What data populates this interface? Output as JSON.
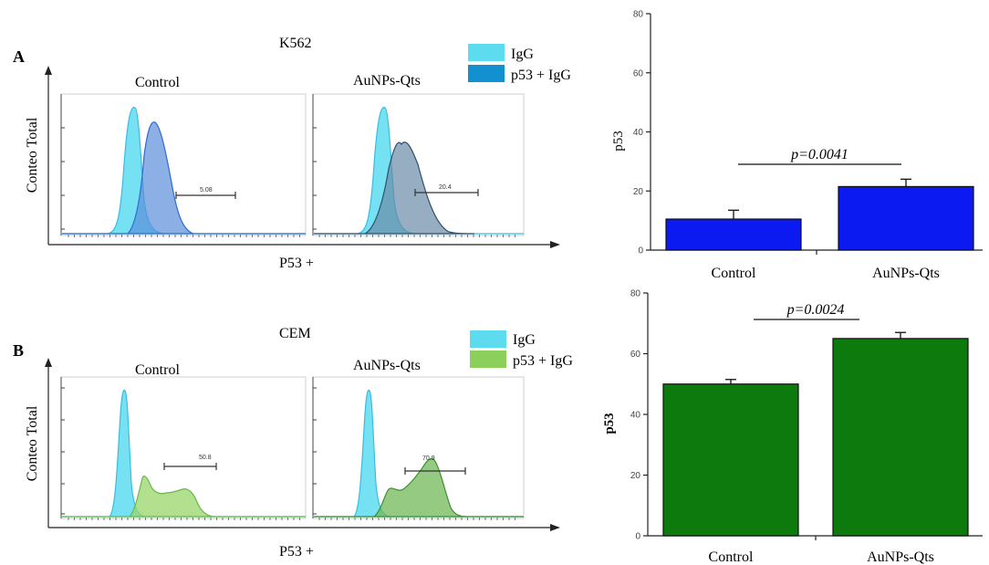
{
  "chart_data": [
    {
      "type": "area",
      "panel": "A",
      "cell_line": "K562",
      "ylabel": "Conteo Total",
      "xlabel": "P53 +",
      "legend": [
        {
          "label": "IgG",
          "color": "#5ddcf0"
        },
        {
          "label": "p53 + IgG",
          "color": "#1290d0"
        }
      ],
      "subplots": [
        {
          "title": "Control",
          "gate_value": "5.08",
          "overlay_color": "#5b8fdc"
        },
        {
          "title": "AuNPs-Qts",
          "gate_value": "20.4",
          "overlay_color": "#6a8aa8"
        }
      ]
    },
    {
      "type": "area",
      "panel": "B",
      "cell_line": "CEM",
      "ylabel": "Conteo Total",
      "xlabel": "P53 +",
      "legend": [
        {
          "label": "IgG",
          "color": "#5ddcf0"
        },
        {
          "label": "p53 + IgG",
          "color": "#8ccf5a"
        }
      ],
      "subplots": [
        {
          "title": "Control",
          "gate_value": "50.8",
          "overlay_color": "#9ad66a"
        },
        {
          "title": "AuNPs-Qts",
          "gate_value": "70.9",
          "overlay_color": "#72b85a"
        }
      ]
    },
    {
      "type": "bar",
      "categories": [
        "Control",
        "AuNPs-Qts"
      ],
      "values": [
        10.5,
        21.5
      ],
      "errors": [
        3.0,
        2.5
      ],
      "ylabel": "p53",
      "ylim": [
        0,
        80
      ],
      "yticks": [
        "0",
        "20",
        "40",
        "60",
        "80"
      ],
      "annotation": "p=0.0041",
      "color": "#0a1af0"
    },
    {
      "type": "bar",
      "categories": [
        "Control",
        "AuNPs-Qts"
      ],
      "values": [
        50,
        65
      ],
      "errors": [
        1.5,
        2.0
      ],
      "ylabel": "p53",
      "ylim": [
        0,
        80
      ],
      "yticks": [
        "0",
        "20",
        "40",
        "60",
        "80"
      ],
      "annotation": "p=0.0024",
      "color": "#0c7a0c"
    }
  ]
}
